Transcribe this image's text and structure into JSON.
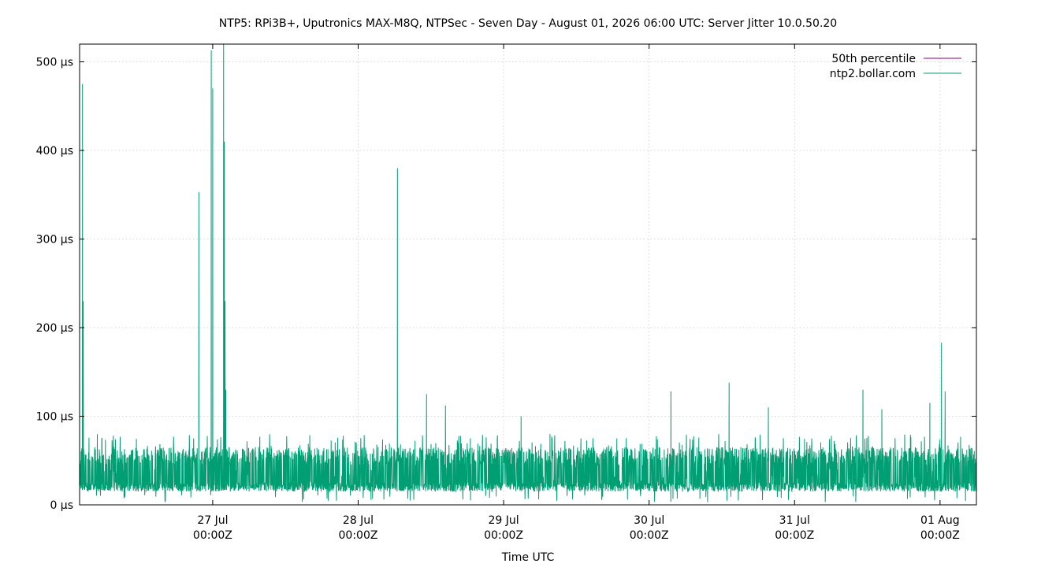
{
  "chart_data": {
    "type": "line",
    "title": "NTP5: RPi3B+, Uputronics MAX-M8Q, NTPSec - Seven Day - August 01, 2026 06:00 UTC: Server Jitter 10.0.50.20",
    "xlabel": "Time UTC",
    "ylabel": "",
    "x_unit": "days since 2026-07-26 00:00Z",
    "xlim": [
      0.085,
      6.25
    ],
    "ylim": [
      0,
      520
    ],
    "y_unit": "µs",
    "grid": true,
    "legend_position": "top-right",
    "y_ticks": [
      {
        "value": 0,
        "label": "0 µs"
      },
      {
        "value": 100,
        "label": "100 µs"
      },
      {
        "value": 200,
        "label": "200 µs"
      },
      {
        "value": 300,
        "label": "300 µs"
      },
      {
        "value": 400,
        "label": "400 µs"
      },
      {
        "value": 500,
        "label": "500 µs"
      }
    ],
    "x_ticks": [
      {
        "value": 1,
        "line1": "27 Jul",
        "line2": "00:00Z"
      },
      {
        "value": 2,
        "line1": "28 Jul",
        "line2": "00:00Z"
      },
      {
        "value": 3,
        "line1": "29 Jul",
        "line2": "00:00Z"
      },
      {
        "value": 4,
        "line1": "30 Jul",
        "line2": "00:00Z"
      },
      {
        "value": 5,
        "line1": "31 Jul",
        "line2": "00:00Z"
      },
      {
        "value": 6,
        "line1": "01 Aug",
        "line2": "00:00Z"
      }
    ],
    "series": [
      {
        "name": "50th percentile",
        "color": "#8b0089",
        "values": []
      },
      {
        "name": "ntp2.bollar.com",
        "color": "#009e73",
        "baseline_band": {
          "low": 15,
          "high": 60,
          "peak_noise_max": 80
        },
        "spikes": [
          {
            "x": 0.105,
            "y": 475
          },
          {
            "x": 0.11,
            "y": 230
          },
          {
            "x": 0.905,
            "y": 353
          },
          {
            "x": 0.99,
            "y": 513
          },
          {
            "x": 1.0,
            "y": 470
          },
          {
            "x": 1.075,
            "y": 525
          },
          {
            "x": 1.08,
            "y": 410
          },
          {
            "x": 1.085,
            "y": 230
          },
          {
            "x": 1.09,
            "y": 130
          },
          {
            "x": 2.27,
            "y": 380
          },
          {
            "x": 2.27,
            "y": 105
          },
          {
            "x": 2.47,
            "y": 125
          },
          {
            "x": 2.6,
            "y": 112
          },
          {
            "x": 3.12,
            "y": 100
          },
          {
            "x": 4.15,
            "y": 128
          },
          {
            "x": 4.55,
            "y": 138
          },
          {
            "x": 4.82,
            "y": 110
          },
          {
            "x": 5.47,
            "y": 130
          },
          {
            "x": 5.6,
            "y": 108
          },
          {
            "x": 5.93,
            "y": 115
          },
          {
            "x": 6.01,
            "y": 183
          },
          {
            "x": 6.035,
            "y": 128
          }
        ]
      }
    ]
  }
}
